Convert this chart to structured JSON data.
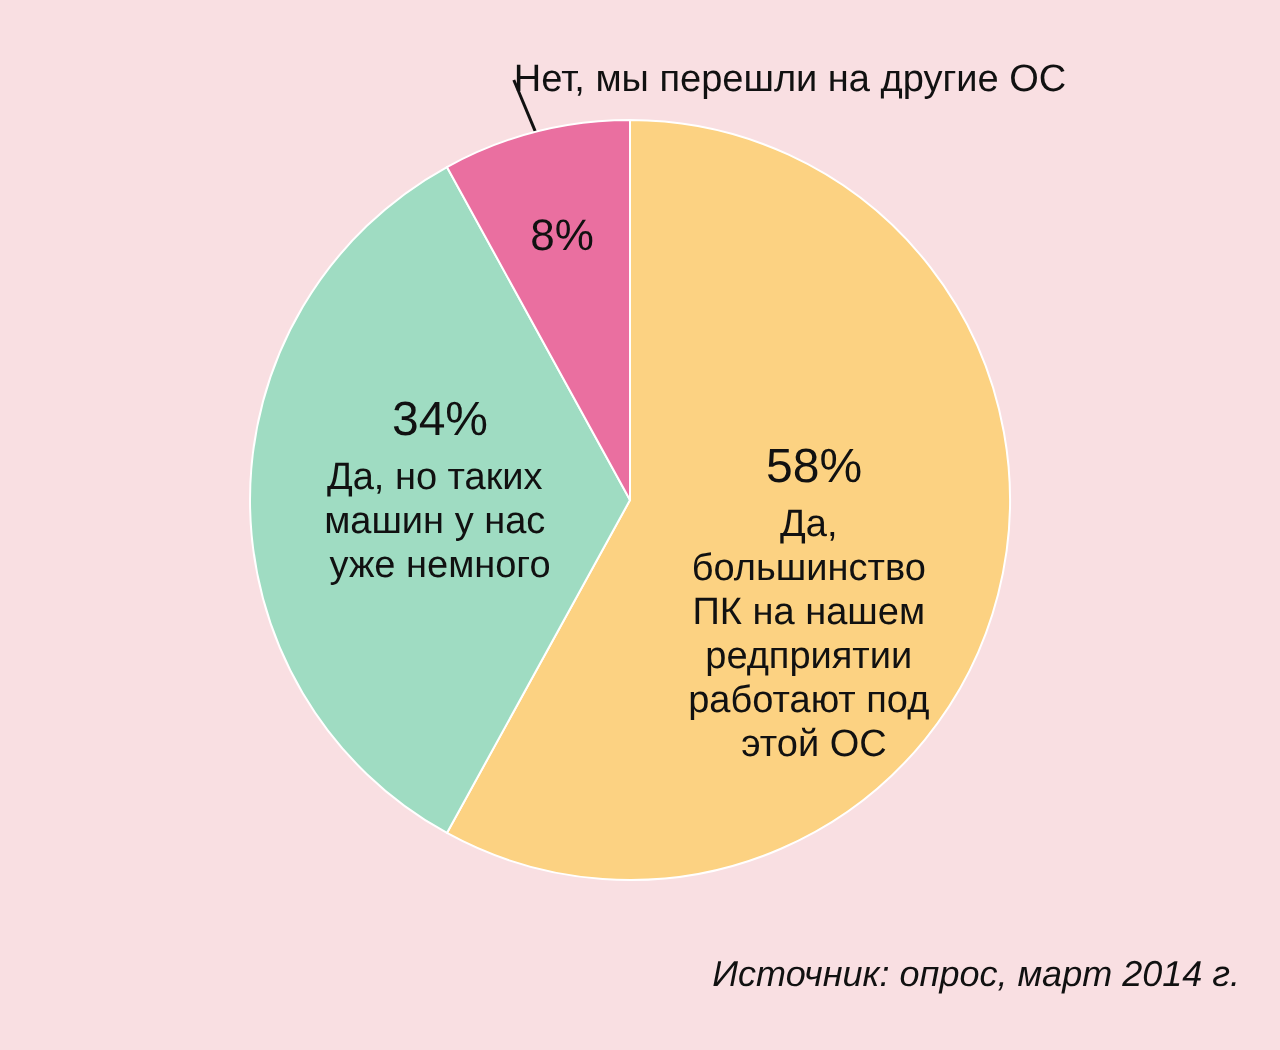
{
  "chart_data": {
    "type": "pie",
    "categories": [
      "Да, большинство ПК на нашем редприятии работают под этой ОС",
      "Да, но таких машин у нас уже немного",
      "Нет, мы перешли на другие ОС"
    ],
    "values": [
      58,
      34,
      8
    ],
    "value_labels": [
      "58%",
      "34%",
      "8%"
    ],
    "colors": [
      "#fcd282",
      "#9fdcc2",
      "#ea6fa0"
    ],
    "annotations": [
      "Источник: опрос, март 2014 г."
    ]
  }
}
